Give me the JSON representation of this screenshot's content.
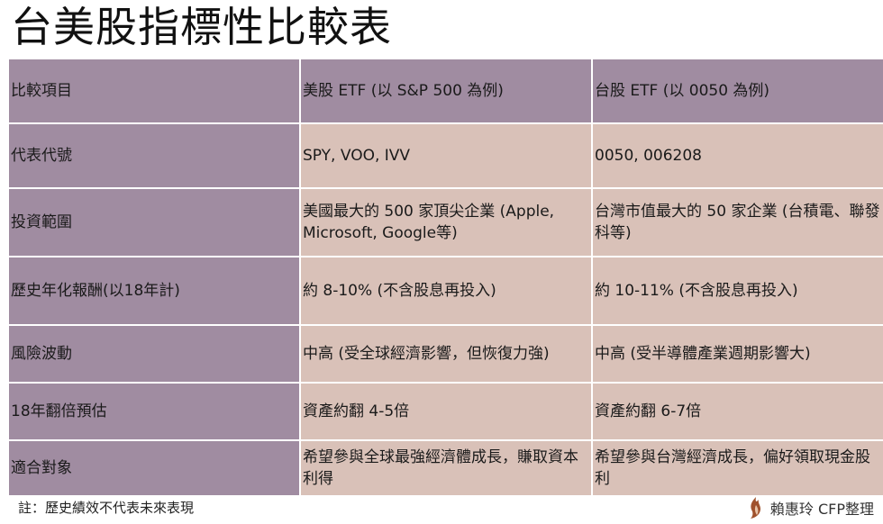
{
  "title": "台美股指標性比較表",
  "table": {
    "header": [
      "比較項目",
      "美股 ETF (以 S&P 500 為例)",
      "台股 ETF (以 0050 為例)"
    ],
    "rows": [
      [
        "代表代號",
        "SPY, VOO, IVV",
        "0050, 006208"
      ],
      [
        "投資範圍",
        "美國最大的 500 家頂尖企業 (Apple, Microsoft, Google等)",
        "台灣市值最大的 50 家企業 (台積電、聯發科等)"
      ],
      [
        "歷史年化報酬(以18年計)",
        "約 8-10% (不含股息再投入)",
        "約 10-11% (不含股息再投入)"
      ],
      [
        "風險波動",
        "中高 (受全球經濟影響，但恢復力強)",
        "中高 (受半導體產業週期影響大)"
      ],
      [
        "18年翻倍預估",
        "資產約翻 4-5倍",
        "資產約翻 6-7倍"
      ],
      [
        "適合對象",
        "希望參與全球最強經濟體成長，賺取資本利得",
        "希望參與台灣經濟成長，偏好領取現金股利"
      ]
    ]
  },
  "footnote": "註：歷史績效不代表未來表現",
  "brand": {
    "text": "賴惠玲 CFP整理",
    "icon": "flame-logo-icon",
    "color": "#a0522d"
  },
  "colors": {
    "label_column": "#a08ca1",
    "header_row": "#a08ca1",
    "body_cells": "#d9c1b8"
  }
}
